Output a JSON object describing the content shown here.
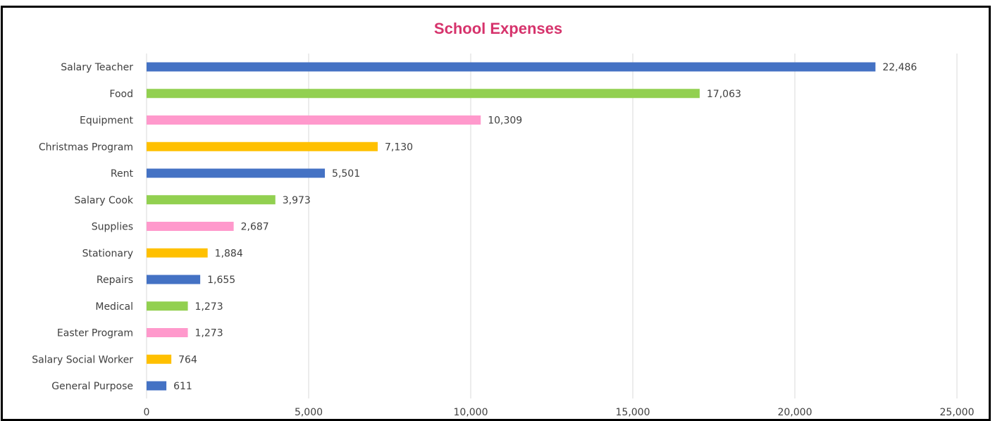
{
  "chart_data": {
    "type": "bar",
    "orientation": "horizontal",
    "title": "School Expenses",
    "title_color": "#d6336c",
    "categories": [
      "Salary Teacher",
      "Food",
      "Equipment",
      "Christmas Program",
      "Rent",
      "Salary Cook",
      "Supplies",
      "Stationary",
      "Repairs",
      "Medical",
      "Easter Program",
      "Salary Social Worker",
      "General Purpose"
    ],
    "values": [
      22486,
      17063,
      10309,
      7130,
      5501,
      3973,
      2687,
      1884,
      1655,
      1273,
      1273,
      764,
      611
    ],
    "value_labels": [
      "22,486",
      "17,063",
      "10,309",
      "7,130",
      "5,501",
      "3,973",
      "2,687",
      "1,884",
      "1,655",
      "1,273",
      "1,273",
      "764",
      "611"
    ],
    "bar_colors": [
      "#4472c4",
      "#92d050",
      "#ff99cc",
      "#ffc000",
      "#4472c4",
      "#92d050",
      "#ff99cc",
      "#ffc000",
      "#4472c4",
      "#92d050",
      "#ff99cc",
      "#ffc000",
      "#4472c4"
    ],
    "xlim": [
      0,
      25000
    ],
    "xticks": [
      0,
      5000,
      10000,
      15000,
      20000,
      25000
    ],
    "xtick_labels": [
      "0",
      "5,000",
      "10,000",
      "15,000",
      "20,000",
      "25,000"
    ],
    "grid": true,
    "legend": "none"
  }
}
